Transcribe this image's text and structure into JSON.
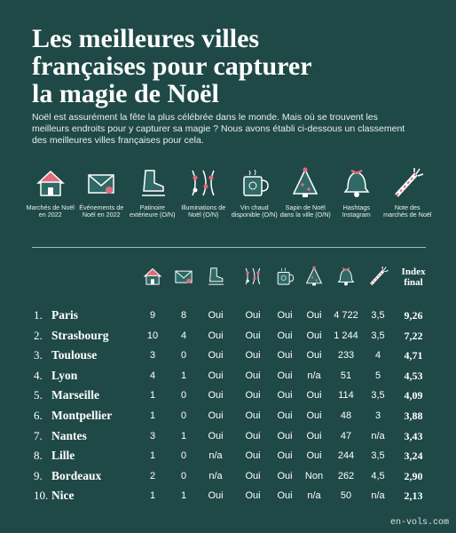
{
  "header": {
    "title_lines": [
      "Les meilleures villes",
      "françaises pour capturer",
      "la magie de Noël"
    ],
    "intro": "Noël est assurément la fête la plus célébrée dans le monde. Mais où se trouvent les meilleurs endroits pour y capturer sa magie ? Nous avons établi ci-dessous un classement des meilleures villes françaises pour cela."
  },
  "legend": [
    "Marchés de Noël en 2022",
    "Événements de Noël en 2022",
    "Patinoire extérieure (O/N)",
    "Illuminations de Noël (O/N)",
    "Vin chaud disponible (O/N)",
    "Sapin de Noël dans la ville (O/N)",
    "Hashtags Instagram",
    "Note des marchés de Noël"
  ],
  "table": {
    "index_header": "Index final",
    "rows": [
      [
        "1.",
        "Paris",
        "9",
        "8",
        "Oui",
        "Oui",
        "Oui",
        "Oui",
        "4 722",
        "3,5",
        "9,26"
      ],
      [
        "2.",
        "Strasbourg",
        "10",
        "4",
        "Oui",
        "Oui",
        "Oui",
        "Oui",
        "1 244",
        "3,5",
        "7,22"
      ],
      [
        "3.",
        "Toulouse",
        "3",
        "0",
        "Oui",
        "Oui",
        "Oui",
        "Oui",
        "233",
        "4",
        "4,71"
      ],
      [
        "4.",
        "Lyon",
        "4",
        "1",
        "Oui",
        "Oui",
        "Oui",
        "n/a",
        "51",
        "5",
        "4,53"
      ],
      [
        "5.",
        "Marseille",
        "1",
        "0",
        "Oui",
        "Oui",
        "Oui",
        "Oui",
        "114",
        "3,5",
        "4,09"
      ],
      [
        "6.",
        "Montpellier",
        "1",
        "0",
        "Oui",
        "Oui",
        "Oui",
        "Oui",
        "48",
        "3",
        "3,88"
      ],
      [
        "7.",
        "Nantes",
        "3",
        "1",
        "Oui",
        "Oui",
        "Oui",
        "Oui",
        "47",
        "n/a",
        "3,43"
      ],
      [
        "8.",
        "Lille",
        "1",
        "0",
        "n/a",
        "Oui",
        "Oui",
        "Oui",
        "244",
        "3,5",
        "3,24"
      ],
      [
        "9.",
        "Bordeaux",
        "2",
        "0",
        "n/a",
        "Oui",
        "Oui",
        "Non",
        "262",
        "4,5",
        "2,90"
      ],
      [
        "10.",
        "Nice",
        "1",
        "1",
        "Oui",
        "Oui",
        "Oui",
        "n/a",
        "50",
        "n/a",
        "2,13"
      ]
    ]
  },
  "watermark": "en-vols.com"
}
